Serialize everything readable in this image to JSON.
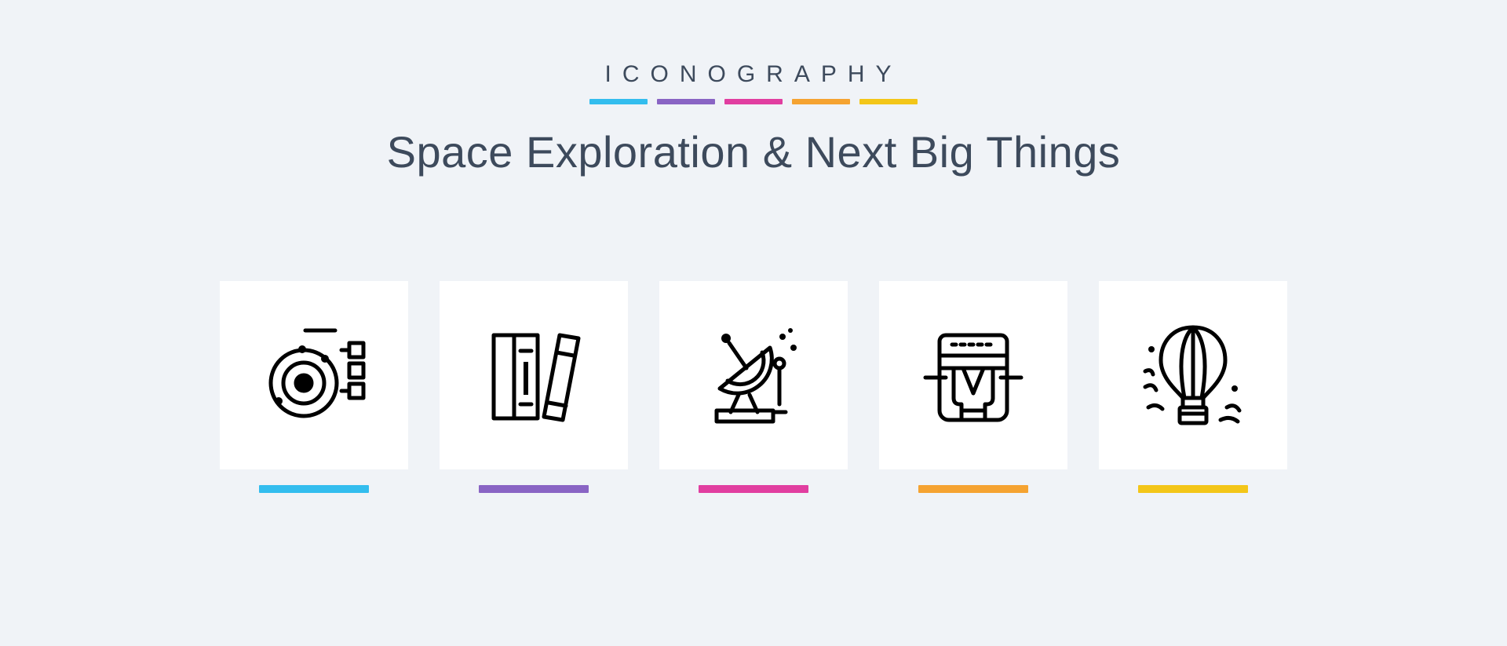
{
  "header": {
    "brand": "ICONOGRAPHY",
    "title": "Space Exploration & Next Big Things",
    "bar_colors": [
      "#33bdee",
      "#8964c4",
      "#e13ea0",
      "#f5a331",
      "#f3c619"
    ]
  },
  "style": {
    "background_color": "#f0f3f7",
    "tile_color": "#ffffff",
    "text_color": "#3d4a5c",
    "icon_stroke": "#000000",
    "icon_stroke_width": 5,
    "brand_fontsize": 30,
    "title_fontsize": 56,
    "tile_size": 240,
    "tile_gap": 40,
    "underline_width": 140,
    "underline_height": 10
  },
  "icons": [
    {
      "name": "orbit-planet-icon",
      "underline_color": "#33bdee"
    },
    {
      "name": "books-library-icon",
      "underline_color": "#8964c4"
    },
    {
      "name": "satellite-dish-icon",
      "underline_color": "#e13ea0"
    },
    {
      "name": "spacecraft-module-icon",
      "underline_color": "#f5a331"
    },
    {
      "name": "hot-air-balloon-icon",
      "underline_color": "#f3c619"
    }
  ]
}
